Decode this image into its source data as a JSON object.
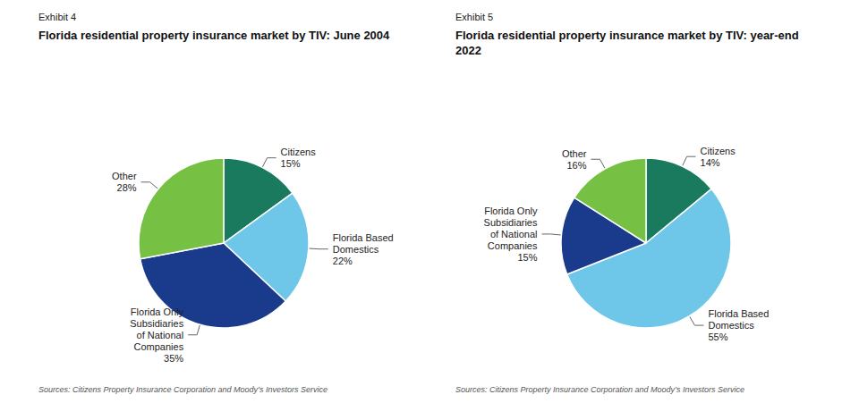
{
  "chart_data": [
    {
      "type": "pie",
      "subtitle": "Exhibit 4",
      "title": "Florida residential property insurance market by TIV: June 2004",
      "categories": [
        "Citizens",
        "Florida Based\nDomestics",
        "Florida Only\nSubsidiaries\nof National\nCompanies",
        "Other"
      ],
      "values": [
        15,
        22,
        35,
        28
      ],
      "value_labels": [
        "15%",
        "22%",
        "35%",
        "28%"
      ],
      "colors": [
        "#1a7a5e",
        "#6ec6e8",
        "#1a3a8c",
        "#76c043"
      ],
      "data_labels": true,
      "annotations": [
        "Sources: Citizens Property Insurance Corporation and Moody’s Investors Service"
      ]
    },
    {
      "type": "pie",
      "subtitle": "Exhibit 5",
      "title": "Florida residential property insurance market by TIV: year-end\n2022",
      "categories": [
        "Citizens",
        "Florida Based\nDomestics",
        "Florida Only\nSubsidiaries\nof National\nCompanies",
        "Other"
      ],
      "values": [
        14,
        55,
        15,
        16
      ],
      "value_labels": [
        "14%",
        "55%",
        "15%",
        "16%"
      ],
      "colors": [
        "#1a7a5e",
        "#6ec6e8",
        "#1a3a8c",
        "#76c043"
      ],
      "data_labels": true,
      "annotations": [
        "Sources: Citizens Property Insurance Corporation and Moody’s Investors Service"
      ]
    }
  ]
}
